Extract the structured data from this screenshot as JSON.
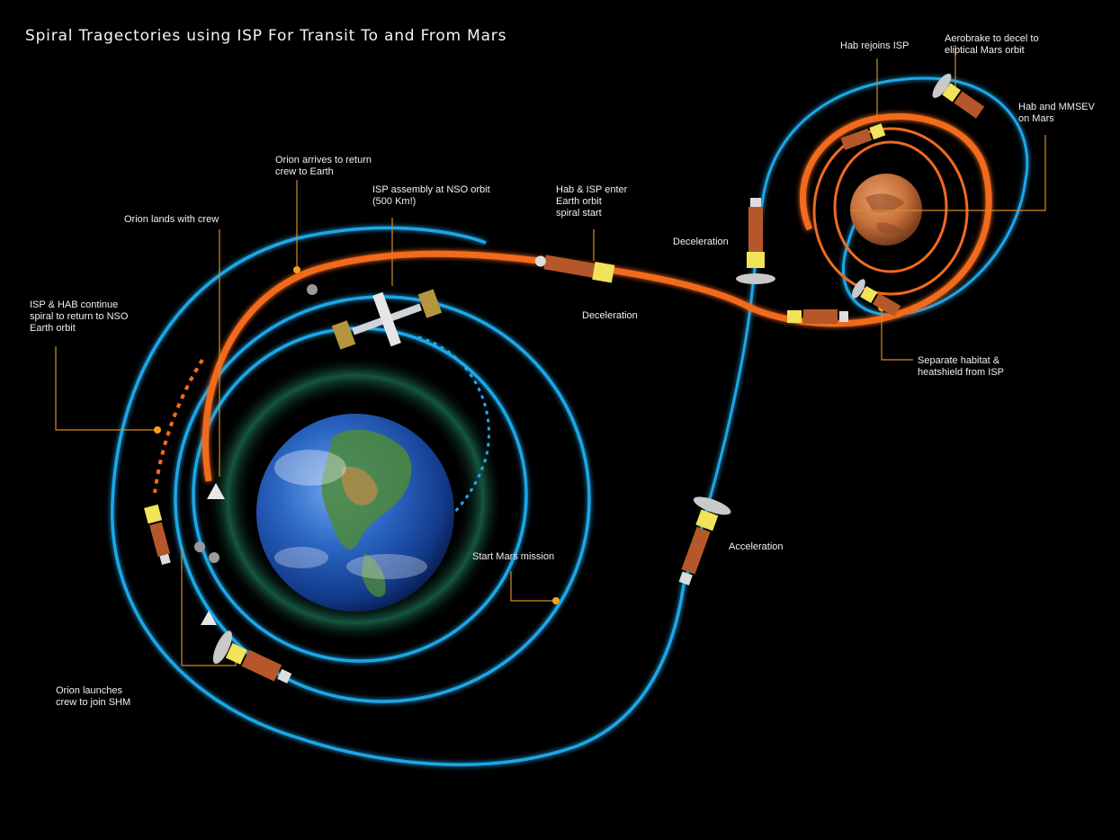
{
  "title": "Spiral Tragectories using ISP For Transit To and From Mars",
  "bodies": {
    "earth": {
      "name_icon": "earth-globe"
    },
    "mars": {
      "name_icon": "mars-globe"
    }
  },
  "labels": {
    "orion_arrives": [
      "Orion arrives to return",
      "crew to Earth"
    ],
    "isp_assembly": [
      "ISP assembly at NSO orbit",
      "(500 Km!)"
    ],
    "hab_isp_enter": [
      "Hab & ISP enter",
      "Earth orbit",
      "spiral start"
    ],
    "orion_lands": [
      "Orion lands with crew"
    ],
    "isp_hab_continue": [
      "ISP & HAB continue",
      "spiral to return to NSO",
      "Earth orbit"
    ],
    "deceleration_mid": [
      "Deceleration"
    ],
    "deceleration_upper": [
      "Deceleration"
    ],
    "hab_rejoins": [
      "Hab rejoins ISP"
    ],
    "aerobrake": [
      "Aerobrake to decel to",
      "eliptical Mars orbit"
    ],
    "hab_mmsev": [
      "Hab and MMSEV",
      "on Mars"
    ],
    "separate_habitat": [
      "Separate habitat &",
      "heatshield from ISP"
    ],
    "start_mars": [
      "Start Mars mission"
    ],
    "acceleration": [
      "Acceleration"
    ],
    "orion_launches": [
      "Orion launches",
      "crew to join SHM"
    ]
  },
  "colors": {
    "background": "#000000",
    "trajectory_blue": "#1fa7e8",
    "trajectory_orange": "#f26a1f",
    "leader_line": "#d58a24",
    "marker_dot": "#f7a11a",
    "earth_ocean": "#1f56b5",
    "mars_surface": "#c8743a",
    "aurora": "#2fbf8f",
    "text": "#f0f0f0"
  }
}
